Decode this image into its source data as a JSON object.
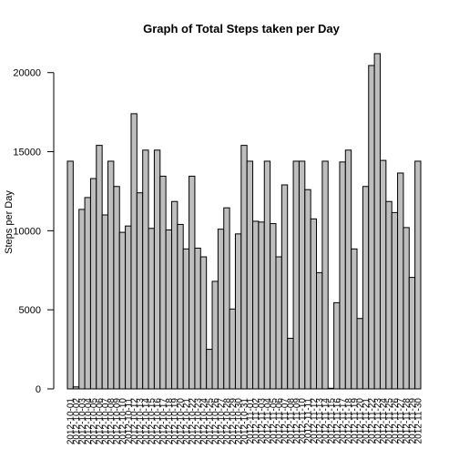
{
  "chart_data": {
    "type": "bar",
    "title": "Graph of Total Steps taken per Day",
    "xlabel": "",
    "ylabel": "Steps per Day",
    "ylim": [
      0,
      21194
    ],
    "yticks": [
      0,
      5000,
      10000,
      15000,
      20000
    ],
    "yticklabels": [
      "0",
      "5000",
      "10000",
      "15000",
      "20000"
    ],
    "grid": false,
    "categories": [
      "2012-10-01",
      "2012-10-02",
      "2012-10-03",
      "2012-10-04",
      "2012-10-05",
      "2012-10-06",
      "2012-10-07",
      "2012-10-08",
      "2012-10-09",
      "2012-10-10",
      "2012-10-11",
      "2012-10-12",
      "2012-10-13",
      "2012-10-14",
      "2012-10-15",
      "2012-10-16",
      "2012-10-17",
      "2012-10-18",
      "2012-10-19",
      "2012-10-20",
      "2012-10-21",
      "2012-10-22",
      "2012-10-23",
      "2012-10-24",
      "2012-10-25",
      "2012-10-26",
      "2012-10-27",
      "2012-10-28",
      "2012-10-29",
      "2012-10-30",
      "2012-10-31",
      "2012-11-01",
      "2012-11-02",
      "2012-11-03",
      "2012-11-04",
      "2012-11-05",
      "2012-11-06",
      "2012-11-07",
      "2012-11-08",
      "2012-11-09",
      "2012-11-10",
      "2012-11-11",
      "2012-11-12",
      "2012-11-13",
      "2012-11-14",
      "2012-11-15",
      "2012-11-16",
      "2012-11-17",
      "2012-11-18",
      "2012-11-19",
      "2012-11-20",
      "2012-11-21",
      "2012-11-22",
      "2012-11-23",
      "2012-11-24",
      "2012-11-25",
      "2012-11-26",
      "2012-11-27",
      "2012-11-28",
      "2012-11-29",
      "2012-11-30"
    ],
    "values": [
      14400,
      126,
      11350,
      12100,
      13300,
      15400,
      11000,
      14400,
      12800,
      9900,
      10300,
      17400,
      12400,
      15100,
      10150,
      15100,
      13450,
      10050,
      11850,
      10400,
      8850,
      13450,
      8900,
      8350,
      2500,
      6800,
      10100,
      11450,
      5050,
      9800,
      15400,
      14400,
      10600,
      10550,
      14400,
      10450,
      8350,
      12900,
      3200,
      14400,
      14400,
      12600,
      10750,
      7350,
      14400,
      40,
      5450,
      14350,
      15100,
      8850,
      4450,
      12800,
      20450,
      21200,
      14450,
      11850,
      11150,
      13650,
      10200,
      7050,
      14400
    ]
  }
}
